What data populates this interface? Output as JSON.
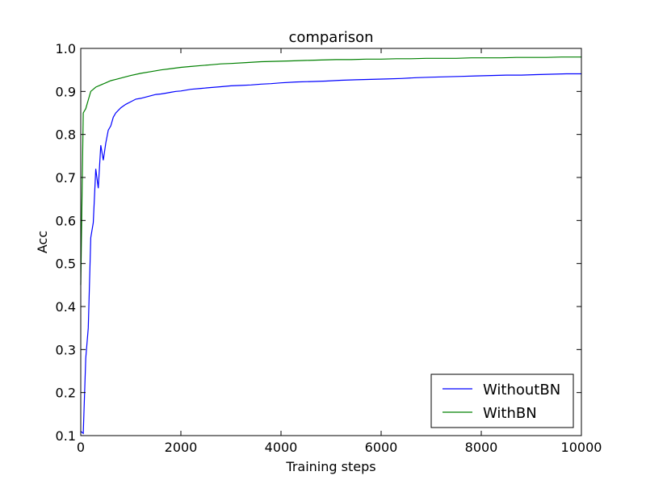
{
  "chart_data": {
    "type": "line",
    "title": "comparison",
    "xlabel": "Training steps",
    "ylabel": "Acc",
    "xlim": [
      0,
      10000
    ],
    "ylim": [
      0.1,
      1.0
    ],
    "xticks": [
      0,
      2000,
      4000,
      6000,
      8000,
      10000
    ],
    "xtick_labels": [
      "0",
      "2000",
      "4000",
      "6000",
      "8000",
      "10000"
    ],
    "yticks": [
      0.1,
      0.2,
      0.3,
      0.4,
      0.5,
      0.6,
      0.7,
      0.8,
      0.9,
      1.0
    ],
    "ytick_labels": [
      "0.1",
      "0.2",
      "0.3",
      "0.4",
      "0.5",
      "0.6",
      "0.7",
      "0.8",
      "0.9",
      "1.0"
    ],
    "grid": false,
    "legend_position": "lower-right",
    "series": [
      {
        "name": "WithoutBN",
        "color": "#0000ff",
        "x": [
          0,
          50,
          100,
          150,
          200,
          250,
          300,
          350,
          400,
          450,
          500,
          550,
          600,
          650,
          700,
          800,
          900,
          1000,
          1100,
          1200,
          1300,
          1400,
          1500,
          1600,
          1700,
          1800,
          1900,
          2000,
          2200,
          2400,
          2600,
          2800,
          3000,
          3200,
          3400,
          3600,
          3800,
          4000,
          4300,
          4600,
          4900,
          5200,
          5500,
          5800,
          6100,
          6400,
          6700,
          7000,
          7300,
          7600,
          7900,
          8200,
          8500,
          8800,
          9100,
          9400,
          9700,
          10000
        ],
        "y": [
          0.11,
          0.105,
          0.28,
          0.35,
          0.56,
          0.595,
          0.72,
          0.675,
          0.775,
          0.74,
          0.78,
          0.81,
          0.82,
          0.84,
          0.85,
          0.862,
          0.87,
          0.876,
          0.882,
          0.884,
          0.887,
          0.89,
          0.893,
          0.894,
          0.896,
          0.898,
          0.9,
          0.901,
          0.905,
          0.907,
          0.909,
          0.911,
          0.913,
          0.914,
          0.915,
          0.917,
          0.918,
          0.92,
          0.922,
          0.923,
          0.924,
          0.926,
          0.927,
          0.928,
          0.929,
          0.93,
          0.932,
          0.933,
          0.934,
          0.935,
          0.936,
          0.937,
          0.938,
          0.938,
          0.939,
          0.94,
          0.941,
          0.941
        ]
      },
      {
        "name": "WithBN",
        "color": "#008000",
        "x": [
          0,
          50,
          100,
          150,
          200,
          250,
          300,
          400,
          500,
          600,
          700,
          800,
          900,
          1000,
          1200,
          1400,
          1600,
          1800,
          2000,
          2200,
          2400,
          2600,
          2800,
          3000,
          3300,
          3600,
          3900,
          4200,
          4500,
          4800,
          5100,
          5400,
          5700,
          6000,
          6300,
          6600,
          6900,
          7200,
          7500,
          7800,
          8100,
          8400,
          8700,
          9000,
          9300,
          9600,
          10000
        ],
        "y": [
          0.45,
          0.85,
          0.86,
          0.88,
          0.9,
          0.905,
          0.91,
          0.915,
          0.92,
          0.925,
          0.928,
          0.931,
          0.934,
          0.937,
          0.942,
          0.946,
          0.95,
          0.953,
          0.956,
          0.958,
          0.96,
          0.962,
          0.964,
          0.965,
          0.967,
          0.969,
          0.97,
          0.971,
          0.972,
          0.973,
          0.974,
          0.974,
          0.975,
          0.975,
          0.976,
          0.976,
          0.977,
          0.977,
          0.977,
          0.978,
          0.978,
          0.978,
          0.979,
          0.979,
          0.979,
          0.98,
          0.98
        ]
      }
    ]
  }
}
